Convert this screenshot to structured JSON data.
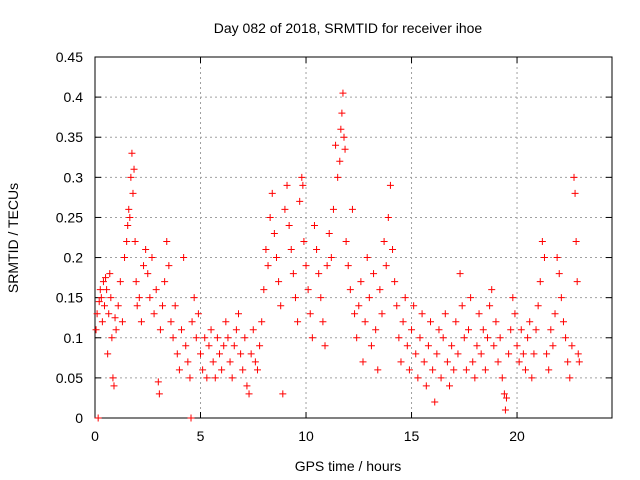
{
  "chart_data": {
    "type": "scatter",
    "title": "Day 082 of 2018, SRMTID for receiver ihoe",
    "xlabel": "GPS time / hours",
    "ylabel": "SRMTID / TECUs",
    "xlim": [
      0,
      24.5
    ],
    "ylim": [
      0,
      0.45
    ],
    "xticks": [
      0,
      5,
      10,
      15,
      20
    ],
    "xtick_labels": [
      "0",
      "5",
      "10",
      "15",
      "20"
    ],
    "yticks": [
      0,
      0.05,
      0.1,
      0.15,
      0.2,
      0.25,
      0.3,
      0.35,
      0.4,
      0.45
    ],
    "ytick_labels": [
      "0",
      "0.05",
      "0.1",
      "0.15",
      "0.2",
      "0.25",
      "0.3",
      "0.35",
      "0.4",
      "0.45"
    ],
    "grid": true,
    "marker": "+",
    "color": "#ff0000",
    "series": [
      {
        "name": "SRMTID",
        "points": [
          [
            0.05,
            0.11
          ],
          [
            0.1,
            0.13
          ],
          [
            0.15,
            0.0
          ],
          [
            0.2,
            0.145
          ],
          [
            0.25,
            0.16
          ],
          [
            0.3,
            0.15
          ],
          [
            0.35,
            0.12
          ],
          [
            0.4,
            0.17
          ],
          [
            0.45,
            0.14
          ],
          [
            0.5,
            0.175
          ],
          [
            0.55,
            0.16
          ],
          [
            0.6,
            0.08
          ],
          [
            0.65,
            0.13
          ],
          [
            0.7,
            0.18
          ],
          [
            0.75,
            0.15
          ],
          [
            0.8,
            0.1
          ],
          [
            0.85,
            0.05
          ],
          [
            0.9,
            0.04
          ],
          [
            0.95,
            0.125
          ],
          [
            1.0,
            0.11
          ],
          [
            1.1,
            0.14
          ],
          [
            1.2,
            0.17
          ],
          [
            1.3,
            0.12
          ],
          [
            1.4,
            0.2
          ],
          [
            1.5,
            0.22
          ],
          [
            1.55,
            0.24
          ],
          [
            1.6,
            0.26
          ],
          [
            1.65,
            0.25
          ],
          [
            1.7,
            0.3
          ],
          [
            1.75,
            0.33
          ],
          [
            1.8,
            0.28
          ],
          [
            1.85,
            0.31
          ],
          [
            1.9,
            0.22
          ],
          [
            1.95,
            0.17
          ],
          [
            2.0,
            0.14
          ],
          [
            2.1,
            0.15
          ],
          [
            2.2,
            0.12
          ],
          [
            2.3,
            0.19
          ],
          [
            2.4,
            0.21
          ],
          [
            2.5,
            0.18
          ],
          [
            2.6,
            0.15
          ],
          [
            2.7,
            0.2
          ],
          [
            2.8,
            0.13
          ],
          [
            2.9,
            0.16
          ],
          [
            3.0,
            0.045
          ],
          [
            3.05,
            0.03
          ],
          [
            3.1,
            0.11
          ],
          [
            3.2,
            0.14
          ],
          [
            3.3,
            0.17
          ],
          [
            3.4,
            0.22
          ],
          [
            3.5,
            0.19
          ],
          [
            3.6,
            0.12
          ],
          [
            3.7,
            0.1
          ],
          [
            3.8,
            0.14
          ],
          [
            3.9,
            0.08
          ],
          [
            4.0,
            0.06
          ],
          [
            4.1,
            0.11
          ],
          [
            4.2,
            0.2
          ],
          [
            4.3,
            0.09
          ],
          [
            4.4,
            0.07
          ],
          [
            4.5,
            0.05
          ],
          [
            4.55,
            0.0
          ],
          [
            4.6,
            0.12
          ],
          [
            4.7,
            0.15
          ],
          [
            4.8,
            0.1
          ],
          [
            4.9,
            0.13
          ],
          [
            5.0,
            0.08
          ],
          [
            5.1,
            0.06
          ],
          [
            5.2,
            0.1
          ],
          [
            5.3,
            0.05
          ],
          [
            5.4,
            0.09
          ],
          [
            5.5,
            0.11
          ],
          [
            5.6,
            0.07
          ],
          [
            5.7,
            0.05
          ],
          [
            5.8,
            0.1
          ],
          [
            5.9,
            0.08
          ],
          [
            6.0,
            0.06
          ],
          [
            6.1,
            0.09
          ],
          [
            6.2,
            0.12
          ],
          [
            6.3,
            0.1
          ],
          [
            6.4,
            0.07
          ],
          [
            6.5,
            0.05
          ],
          [
            6.6,
            0.09
          ],
          [
            6.7,
            0.11
          ],
          [
            6.8,
            0.13
          ],
          [
            6.9,
            0.08
          ],
          [
            7.0,
            0.06
          ],
          [
            7.1,
            0.1
          ],
          [
            7.2,
            0.04
          ],
          [
            7.3,
            0.03
          ],
          [
            7.4,
            0.08
          ],
          [
            7.5,
            0.11
          ],
          [
            7.6,
            0.07
          ],
          [
            7.7,
            0.06
          ],
          [
            7.8,
            0.09
          ],
          [
            7.9,
            0.12
          ],
          [
            8.0,
            0.16
          ],
          [
            8.1,
            0.21
          ],
          [
            8.2,
            0.19
          ],
          [
            8.3,
            0.25
          ],
          [
            8.4,
            0.28
          ],
          [
            8.5,
            0.23
          ],
          [
            8.6,
            0.2
          ],
          [
            8.7,
            0.17
          ],
          [
            8.8,
            0.14
          ],
          [
            8.9,
            0.03
          ],
          [
            9.0,
            0.26
          ],
          [
            9.1,
            0.29
          ],
          [
            9.2,
            0.24
          ],
          [
            9.3,
            0.21
          ],
          [
            9.4,
            0.18
          ],
          [
            9.5,
            0.15
          ],
          [
            9.6,
            0.12
          ],
          [
            9.7,
            0.27
          ],
          [
            9.8,
            0.3
          ],
          [
            9.85,
            0.29
          ],
          [
            9.9,
            0.22
          ],
          [
            10.0,
            0.19
          ],
          [
            10.1,
            0.16
          ],
          [
            10.2,
            0.13
          ],
          [
            10.3,
            0.1
          ],
          [
            10.4,
            0.24
          ],
          [
            10.5,
            0.21
          ],
          [
            10.6,
            0.18
          ],
          [
            10.7,
            0.15
          ],
          [
            10.8,
            0.12
          ],
          [
            10.9,
            0.09
          ],
          [
            11.0,
            0.19
          ],
          [
            11.1,
            0.23
          ],
          [
            11.2,
            0.2
          ],
          [
            11.3,
            0.26
          ],
          [
            11.4,
            0.34
          ],
          [
            11.5,
            0.3
          ],
          [
            11.6,
            0.32
          ],
          [
            11.65,
            0.36
          ],
          [
            11.7,
            0.38
          ],
          [
            11.75,
            0.405
          ],
          [
            11.8,
            0.35
          ],
          [
            11.85,
            0.335
          ],
          [
            11.9,
            0.22
          ],
          [
            12.0,
            0.19
          ],
          [
            12.1,
            0.16
          ],
          [
            12.2,
            0.26
          ],
          [
            12.3,
            0.13
          ],
          [
            12.4,
            0.1
          ],
          [
            12.5,
            0.14
          ],
          [
            12.6,
            0.17
          ],
          [
            12.7,
            0.07
          ],
          [
            12.8,
            0.12
          ],
          [
            12.9,
            0.2
          ],
          [
            13.0,
            0.15
          ],
          [
            13.1,
            0.09
          ],
          [
            13.2,
            0.18
          ],
          [
            13.3,
            0.11
          ],
          [
            13.4,
            0.06
          ],
          [
            13.5,
            0.16
          ],
          [
            13.6,
            0.13
          ],
          [
            13.7,
            0.22
          ],
          [
            13.8,
            0.19
          ],
          [
            13.9,
            0.25
          ],
          [
            14.0,
            0.29
          ],
          [
            14.1,
            0.21
          ],
          [
            14.2,
            0.17
          ],
          [
            14.3,
            0.14
          ],
          [
            14.4,
            0.1
          ],
          [
            14.5,
            0.07
          ],
          [
            14.6,
            0.12
          ],
          [
            14.7,
            0.15
          ],
          [
            14.8,
            0.09
          ],
          [
            14.9,
            0.06
          ],
          [
            15.0,
            0.11
          ],
          [
            15.1,
            0.14
          ],
          [
            15.2,
            0.08
          ],
          [
            15.3,
            0.05
          ],
          [
            15.4,
            0.1
          ],
          [
            15.5,
            0.13
          ],
          [
            15.6,
            0.07
          ],
          [
            15.7,
            0.04
          ],
          [
            15.8,
            0.09
          ],
          [
            15.9,
            0.12
          ],
          [
            16.0,
            0.06
          ],
          [
            16.1,
            0.02
          ],
          [
            16.2,
            0.08
          ],
          [
            16.3,
            0.11
          ],
          [
            16.4,
            0.05
          ],
          [
            16.5,
            0.1
          ],
          [
            16.6,
            0.13
          ],
          [
            16.7,
            0.07
          ],
          [
            16.8,
            0.04
          ],
          [
            16.9,
            0.09
          ],
          [
            17.0,
            0.06
          ],
          [
            17.1,
            0.12
          ],
          [
            17.2,
            0.08
          ],
          [
            17.3,
            0.18
          ],
          [
            17.4,
            0.14
          ],
          [
            17.5,
            0.1
          ],
          [
            17.6,
            0.06
          ],
          [
            17.7,
            0.11
          ],
          [
            17.8,
            0.15
          ],
          [
            17.9,
            0.07
          ],
          [
            18.0,
            0.05
          ],
          [
            18.1,
            0.09
          ],
          [
            18.2,
            0.13
          ],
          [
            18.3,
            0.08
          ],
          [
            18.4,
            0.11
          ],
          [
            18.5,
            0.06
          ],
          [
            18.6,
            0.1
          ],
          [
            18.7,
            0.14
          ],
          [
            18.8,
            0.16
          ],
          [
            18.9,
            0.09
          ],
          [
            19.0,
            0.12
          ],
          [
            19.1,
            0.07
          ],
          [
            19.2,
            0.1
          ],
          [
            19.3,
            0.05
          ],
          [
            19.4,
            0.03
          ],
          [
            19.45,
            0.01
          ],
          [
            19.5,
            0.025
          ],
          [
            19.6,
            0.08
          ],
          [
            19.7,
            0.11
          ],
          [
            19.8,
            0.15
          ],
          [
            19.9,
            0.13
          ],
          [
            20.0,
            0.09
          ],
          [
            20.1,
            0.07
          ],
          [
            20.2,
            0.11
          ],
          [
            20.3,
            0.08
          ],
          [
            20.4,
            0.06
          ],
          [
            20.5,
            0.1
          ],
          [
            20.6,
            0.12
          ],
          [
            20.7,
            0.05
          ],
          [
            20.8,
            0.08
          ],
          [
            20.9,
            0.11
          ],
          [
            21.0,
            0.14
          ],
          [
            21.1,
            0.17
          ],
          [
            21.2,
            0.22
          ],
          [
            21.3,
            0.2
          ],
          [
            21.4,
            0.08
          ],
          [
            21.5,
            0.06
          ],
          [
            21.6,
            0.11
          ],
          [
            21.7,
            0.09
          ],
          [
            21.8,
            0.13
          ],
          [
            21.9,
            0.2
          ],
          [
            22.0,
            0.18
          ],
          [
            22.1,
            0.15
          ],
          [
            22.2,
            0.12
          ],
          [
            22.3,
            0.1
          ],
          [
            22.4,
            0.07
          ],
          [
            22.5,
            0.05
          ],
          [
            22.6,
            0.09
          ],
          [
            22.7,
            0.3
          ],
          [
            22.75,
            0.28
          ],
          [
            22.8,
            0.22
          ],
          [
            22.85,
            0.17
          ],
          [
            22.9,
            0.08
          ],
          [
            22.95,
            0.07
          ]
        ]
      }
    ]
  }
}
